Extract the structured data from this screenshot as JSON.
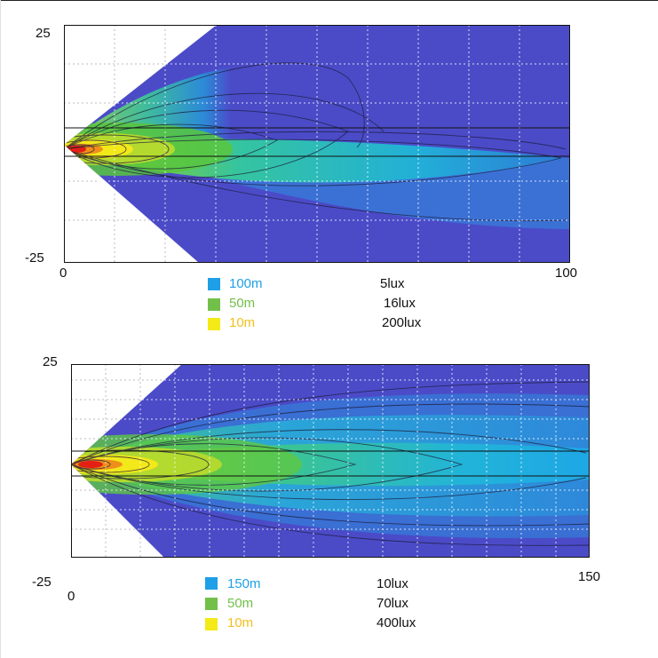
{
  "chart_data": [
    {
      "type": "heatmap",
      "y_ticks": [
        "25",
        "-25"
      ],
      "x_ticks": [
        "0",
        "100"
      ],
      "xlim": [
        0,
        100
      ],
      "ylim": [
        -25,
        25
      ],
      "grid": true,
      "colors": {
        "far": "#4b4bc8",
        "edge": "#1ea7e6",
        "mid": "#66cc44",
        "near": "#f2e81a",
        "peak": "#e82418"
      },
      "legend": [
        {
          "distance": "100m",
          "lux": "5lux",
          "color": "#1e9fe8"
        },
        {
          "distance": "50m",
          "lux": "16lux",
          "color": "#72c04a"
        },
        {
          "distance": "10m",
          "lux": "200lux",
          "color": "#f4ea18"
        }
      ]
    },
    {
      "type": "heatmap",
      "y_ticks": [
        "25",
        "-25"
      ],
      "x_ticks": [
        "0",
        "150"
      ],
      "xlim": [
        0,
        150
      ],
      "ylim": [
        -25,
        25
      ],
      "grid": true,
      "colors": {
        "far": "#4b4bc8",
        "edge": "#1ea7e6",
        "mid": "#66cc44",
        "near": "#f2e81a",
        "peak": "#e82418"
      },
      "legend": [
        {
          "distance": "150m",
          "lux": "10lux",
          "color": "#1e9fe8"
        },
        {
          "distance": "50m",
          "lux": "70lux",
          "color": "#72c04a"
        },
        {
          "distance": "10m",
          "lux": "400lux",
          "color": "#f4ea18"
        }
      ]
    }
  ]
}
